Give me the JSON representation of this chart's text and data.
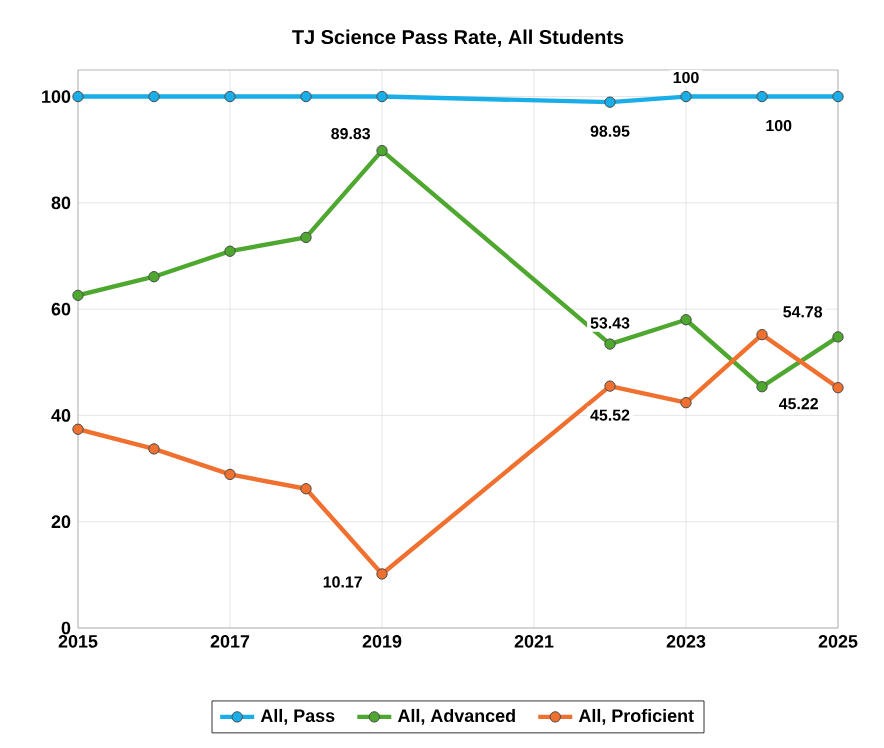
{
  "chart_data": {
    "type": "line",
    "title": "TJ Science Pass Rate, All Students",
    "x": [
      2015,
      2016,
      2017,
      2018,
      2019,
      2022,
      2023,
      2024,
      2025
    ],
    "series": [
      {
        "name": "All, Pass",
        "color": "#1aaee8",
        "values": [
          100,
          100,
          100,
          100,
          100,
          98.95,
          100,
          100,
          100
        ]
      },
      {
        "name": "All, Advanced",
        "color": "#4ea72e",
        "values": [
          62.6,
          66.1,
          70.9,
          73.5,
          89.83,
          53.43,
          58.0,
          45.4,
          54.78
        ]
      },
      {
        "name": "All, Proficient",
        "color": "#f07030",
        "values": [
          37.4,
          33.7,
          28.9,
          26.2,
          10.17,
          45.52,
          42.4,
          55.2,
          45.22
        ]
      }
    ],
    "xlim": [
      2015,
      2025
    ],
    "xticks": [
      2015,
      2017,
      2019,
      2021,
      2023,
      2025
    ],
    "ylim": [
      0,
      105
    ],
    "yticks": [
      0,
      20,
      40,
      60,
      80,
      100
    ],
    "grid": true,
    "legend": "bottom",
    "marker": "circle",
    "line_style": "solid",
    "annotations": [
      {
        "text": "100",
        "x": 2023,
        "y": 100
      },
      {
        "text": "98.95",
        "x": 2022,
        "y": 98.95
      },
      {
        "text": "100",
        "x": 2024,
        "y": 100
      },
      {
        "text": "89.83",
        "x": 2019,
        "y": 89.83
      },
      {
        "text": "53.43",
        "x": 2022,
        "y": 53.43
      },
      {
        "text": "54.78",
        "x": 2025,
        "y": 54.78
      },
      {
        "text": "45.52",
        "x": 2022,
        "y": 45.52
      },
      {
        "text": "45.22",
        "x": 2025,
        "y": 45.22
      },
      {
        "text": "10.17",
        "x": 2019,
        "y": 10.17
      }
    ]
  }
}
